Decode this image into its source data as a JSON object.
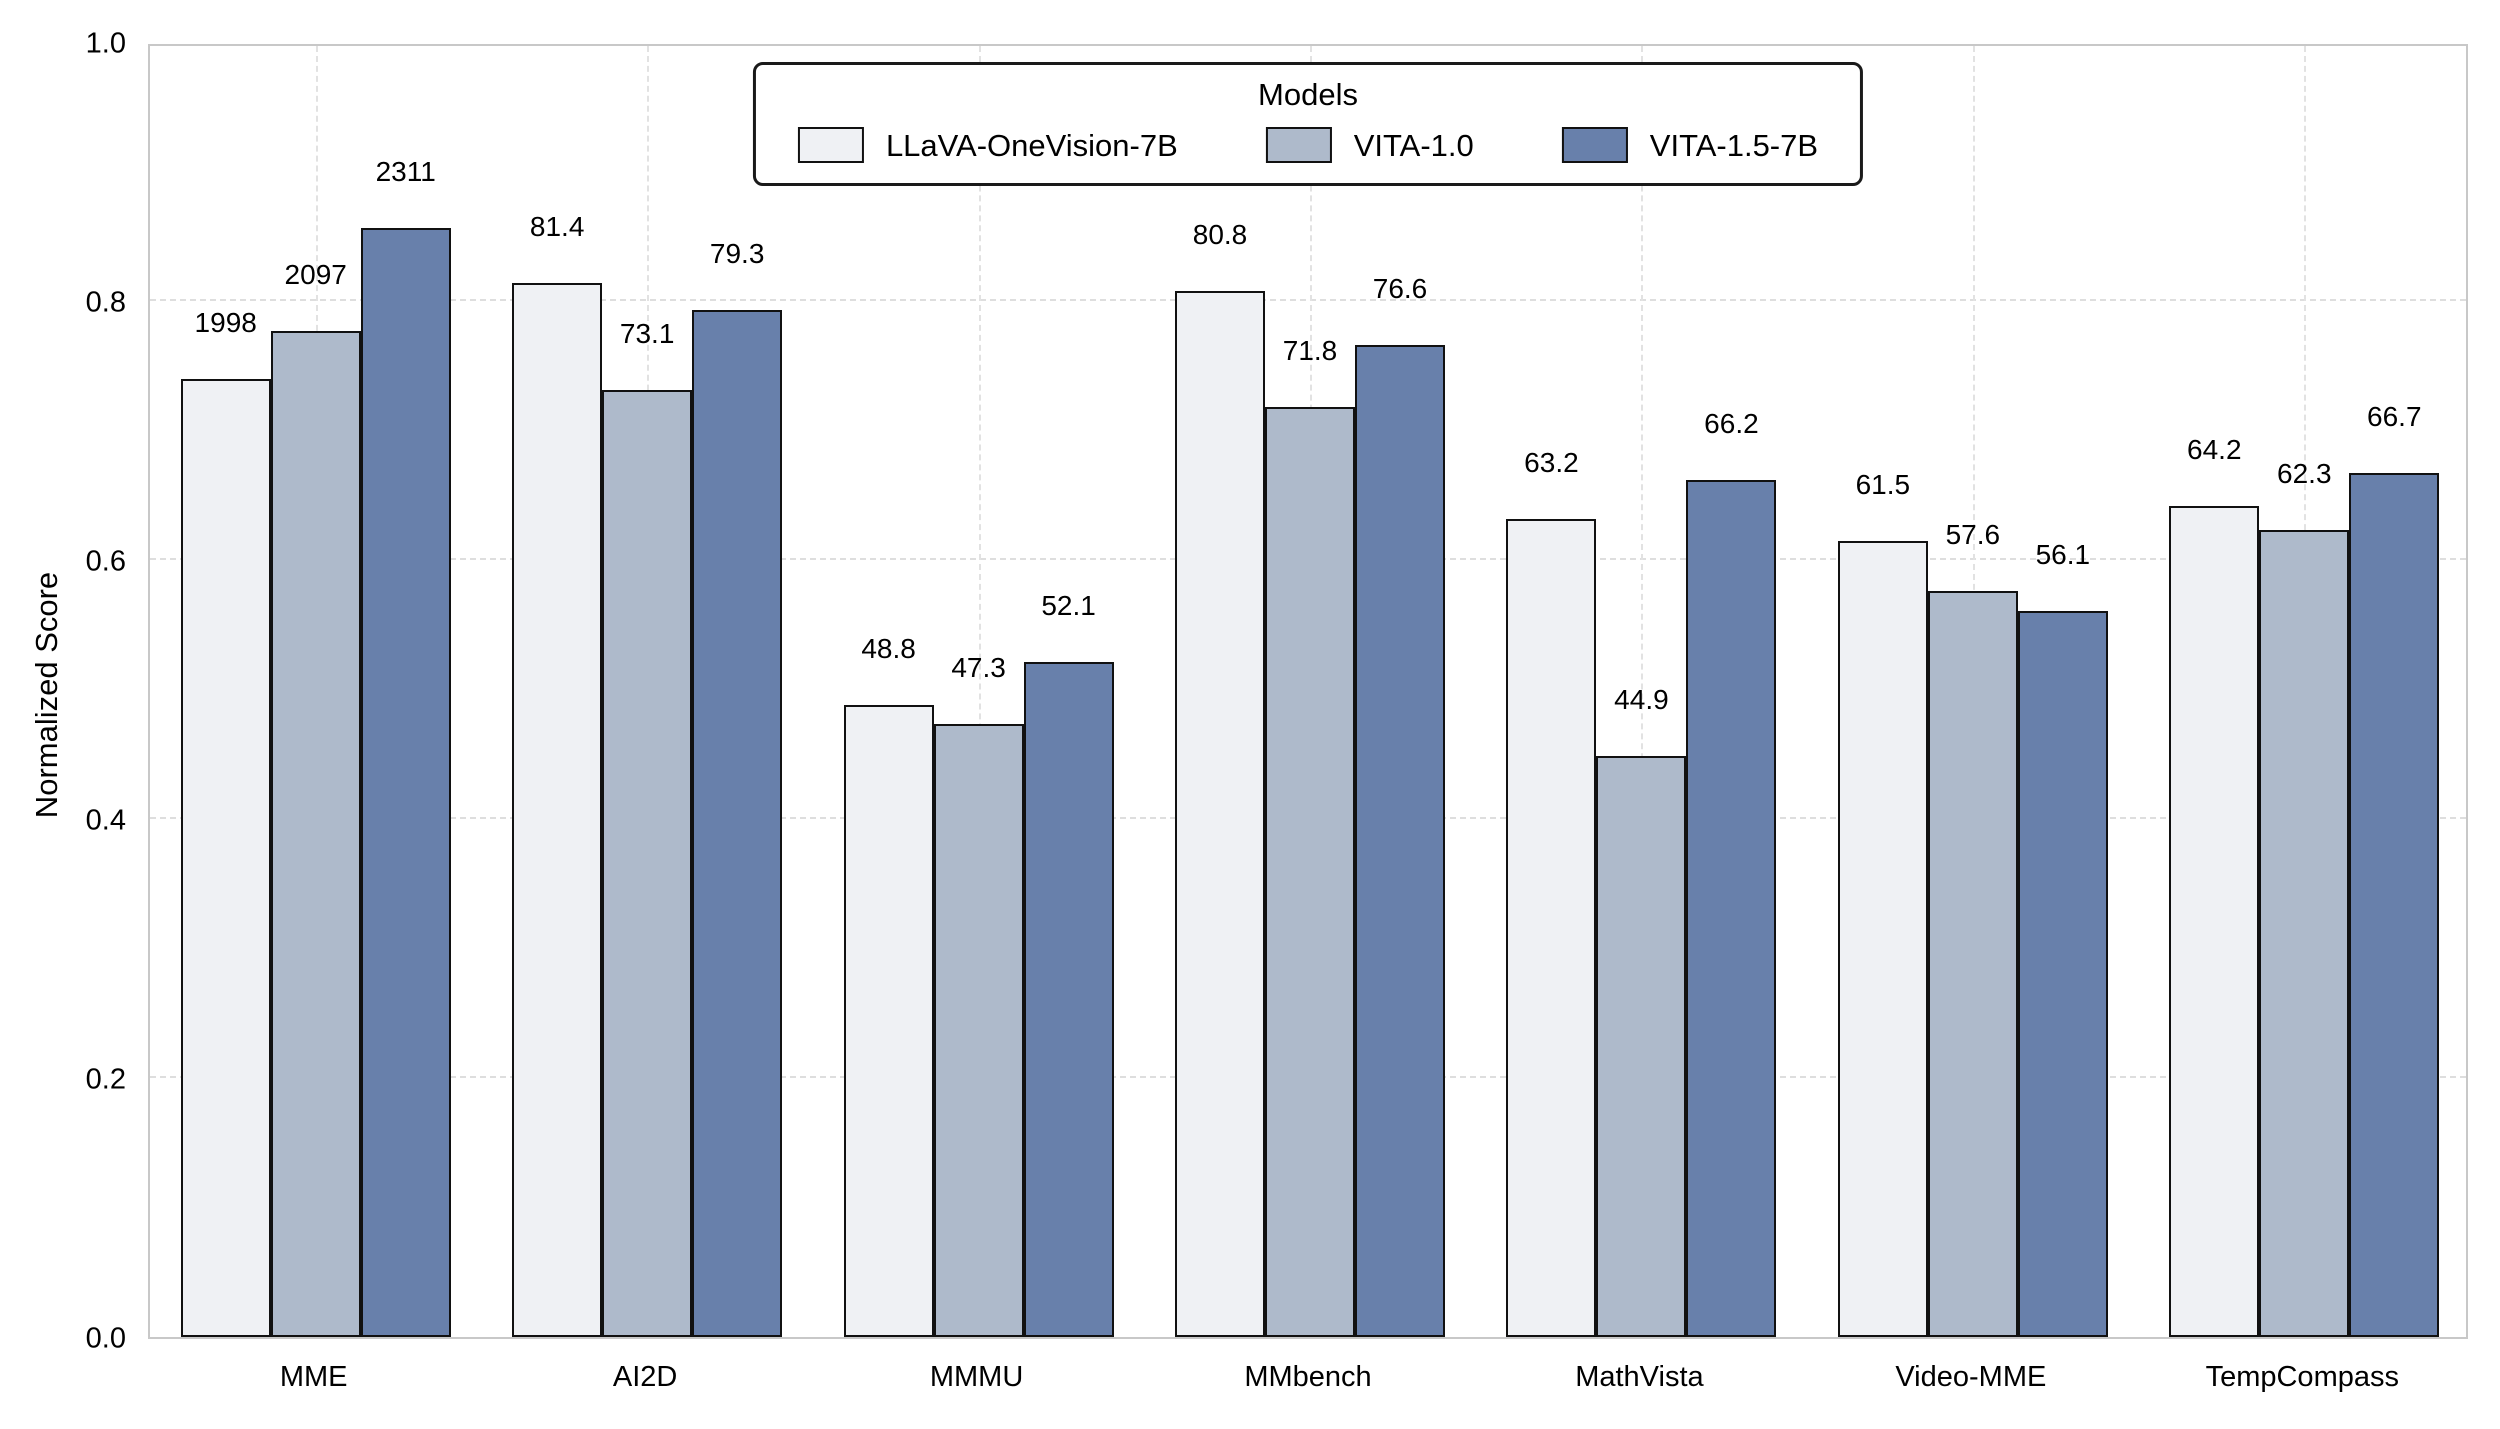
{
  "chart_data": {
    "type": "bar",
    "title": "",
    "xlabel": "",
    "ylabel": "Normalized Score",
    "ylim": [
      0.0,
      1.0
    ],
    "yticks": [
      "0.0",
      "0.2",
      "0.4",
      "0.6",
      "0.8",
      "1.0"
    ],
    "grid": true,
    "legend_title": "Models",
    "legend_position": "top-center",
    "categories": [
      "MME",
      "AI2D",
      "MMMU",
      "MMbench",
      "MathVista",
      "Video-MME",
      "TempCompass"
    ],
    "series": [
      {
        "name": "LLaVA-OneVision-7B",
        "color": "#eff1f4",
        "labels": [
          "1998",
          "81.4",
          "48.8",
          "80.8",
          "63.2",
          "61.5",
          "64.2"
        ],
        "values": [
          1998,
          81.4,
          48.8,
          80.8,
          63.2,
          61.5,
          64.2
        ],
        "normalized": [
          0.74,
          0.814,
          0.488,
          0.808,
          0.632,
          0.615,
          0.642
        ]
      },
      {
        "name": "VITA-1.0",
        "color": "#aebacb",
        "labels": [
          "2097",
          "73.1",
          "47.3",
          "71.8",
          "44.9",
          "57.6",
          "62.3"
        ],
        "values": [
          2097,
          73.1,
          47.3,
          71.8,
          44.9,
          57.6,
          62.3
        ],
        "normalized": [
          0.777,
          0.731,
          0.473,
          0.718,
          0.449,
          0.576,
          0.623
        ]
      },
      {
        "name": "VITA-1.5-7B",
        "color": "#6880ab",
        "labels": [
          "2311",
          "79.3",
          "52.1",
          "76.6",
          "66.2",
          "56.1",
          "66.7"
        ],
        "values": [
          2311,
          79.3,
          52.1,
          76.6,
          66.2,
          56.1,
          66.7
        ],
        "normalized": [
          0.856,
          0.793,
          0.521,
          0.766,
          0.662,
          0.561,
          0.667
        ]
      }
    ]
  }
}
